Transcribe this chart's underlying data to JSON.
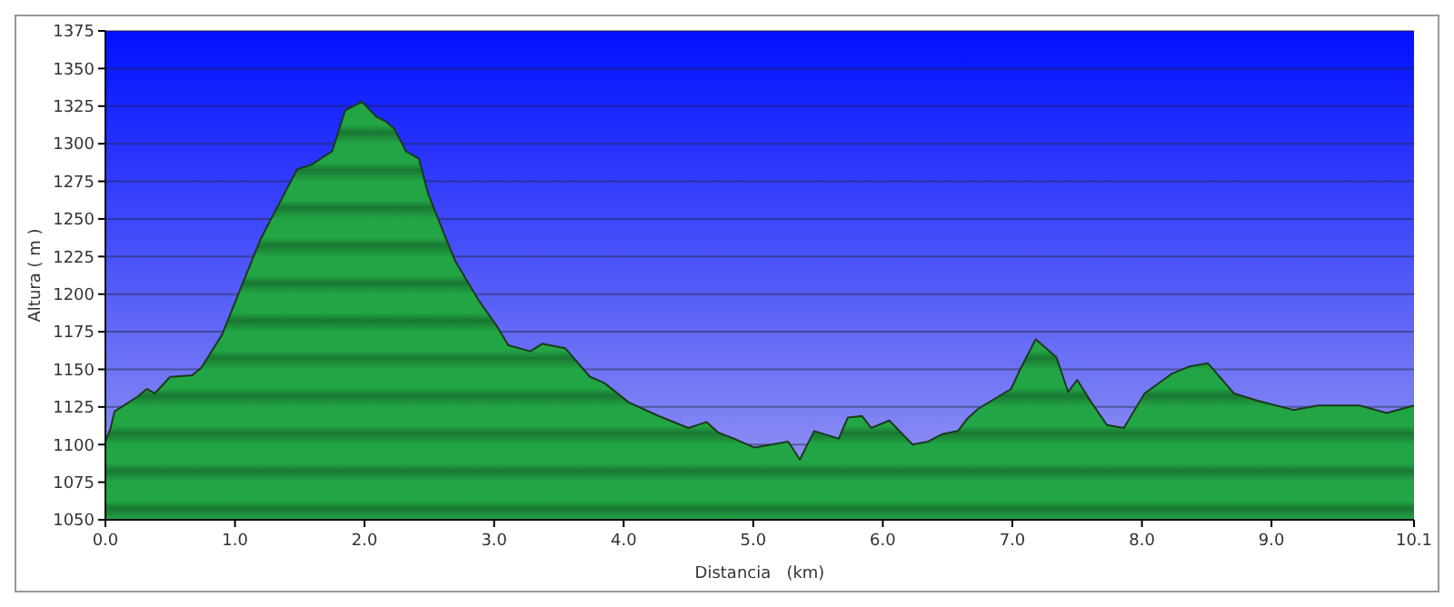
{
  "chart_data": {
    "type": "area",
    "xlabel": "Distancia   (km)",
    "ylabel": "Altura ( m )",
    "xlim": [
      0,
      10.1
    ],
    "ylim": [
      1050,
      1375
    ],
    "xticks": [
      {
        "value": 0,
        "label": "0.0"
      },
      {
        "value": 1,
        "label": "1.0"
      },
      {
        "value": 2,
        "label": "2.0"
      },
      {
        "value": 3,
        "label": "3.0"
      },
      {
        "value": 4,
        "label": "4.0"
      },
      {
        "value": 5,
        "label": "5.0"
      },
      {
        "value": 6,
        "label": "6.0"
      },
      {
        "value": 7,
        "label": "7.0"
      },
      {
        "value": 8,
        "label": "8.0"
      },
      {
        "value": 9,
        "label": "9.0"
      },
      10.1
    ],
    "yticks": [
      1050,
      1075,
      1100,
      1125,
      1150,
      1175,
      1200,
      1225,
      1250,
      1275,
      1300,
      1325,
      1350,
      1375
    ],
    "grid": "y",
    "series": [
      {
        "color": "#22a545",
        "x": [
          0,
          0.04,
          0.07,
          0.25,
          0.32,
          0.38,
          0.5,
          0.67,
          0.74,
          0.9,
          1.04,
          1.2,
          1.34,
          1.48,
          1.59,
          1.75,
          1.85,
          1.98,
          2.09,
          2.16,
          2.23,
          2.32,
          2.42,
          2.49,
          2.61,
          2.7,
          2.88,
          3.02,
          3.11,
          3.28,
          3.37,
          3.55,
          3.74,
          3.85,
          4.04,
          4.27,
          4.5,
          4.64,
          4.73,
          4.85,
          5.01,
          5.27,
          5.36,
          5.47,
          5.66,
          5.73,
          5.84,
          5.91,
          6.05,
          6.23,
          6.35,
          6.46,
          6.58,
          6.65,
          6.74,
          6.99,
          7.06,
          7.18,
          7.34,
          7.43,
          7.5,
          7.61,
          7.73,
          7.86,
          8.02,
          8.23,
          8.37,
          8.51,
          8.71,
          8.9,
          9.17,
          9.36,
          9.68,
          9.89,
          10.1
        ],
        "values": [
          1102,
          1111,
          1122,
          1132,
          1137,
          1134,
          1145,
          1146,
          1151,
          1173,
          1203,
          1237,
          1260,
          1283,
          1286,
          1295,
          1322,
          1328,
          1318,
          1315,
          1310,
          1295,
          1290,
          1267,
          1241,
          1222,
          1196,
          1179,
          1166,
          1162,
          1167,
          1164,
          1145,
          1141,
          1128,
          1119,
          1111,
          1115,
          1108,
          1104,
          1098,
          1102,
          1090,
          1109,
          1104,
          1118,
          1119,
          1111,
          1116,
          1100,
          1102,
          1107,
          1109,
          1117,
          1124,
          1137,
          1150,
          1170,
          1158,
          1135,
          1143,
          1128,
          1113,
          1111,
          1134,
          1147,
          1152,
          1154,
          1134,
          1129,
          1123,
          1126,
          1126,
          1121,
          1126
        ]
      }
    ]
  }
}
